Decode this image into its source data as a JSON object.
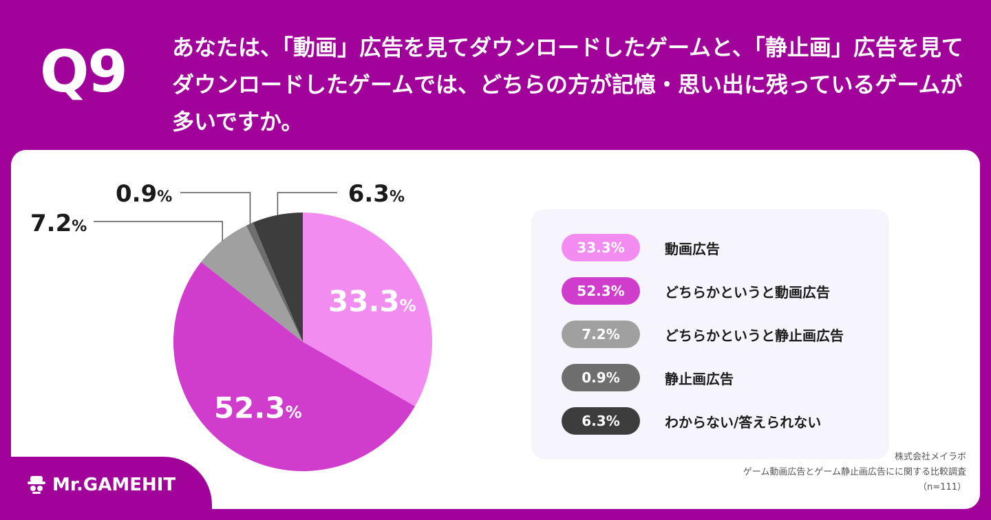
{
  "header": {
    "q_label": "Q9",
    "question": "あなたは、「動画」広告を見てダウンロードしたゲームと、「静止画」広告を見てダウンロードしたゲームでは、どちらの方が記憶・思い出に残っているゲームが多いですか。"
  },
  "chart_data": {
    "type": "pie",
    "unit": "%",
    "start": "12 o'clock, clockwise",
    "slices": [
      {
        "label": "動画広告",
        "value": 33.3,
        "display": "33.3",
        "color": "#f28cf0",
        "label_style": "inside"
      },
      {
        "label": "どちらかというと動画広告",
        "value": 52.3,
        "display": "52.3",
        "color": "#d03dcc",
        "label_style": "inside"
      },
      {
        "label": "どちらかというと静止画広告",
        "value": 7.2,
        "display": "7.2",
        "color": "#a0a0a0",
        "label_style": "callout"
      },
      {
        "label": "静止画広告",
        "value": 0.9,
        "display": "0.9",
        "color": "#6e6e6e",
        "label_style": "callout"
      },
      {
        "label": "わからない/答えられない",
        "value": 6.3,
        "display": "6.3",
        "color": "#3d3d3d",
        "label_style": "callout"
      }
    ]
  },
  "legend": [
    {
      "pill": "33.3%",
      "label": "動画広告",
      "color": "#f28cf0"
    },
    {
      "pill": "52.3%",
      "label": "どちらかというと動画広告",
      "color": "#d03dcc"
    },
    {
      "pill": "7.2%",
      "label": "どちらかというと静止画広告",
      "color": "#a0a0a0"
    },
    {
      "pill": "0.9%",
      "label": "静止画広告",
      "color": "#6e6e6e"
    },
    {
      "pill": "6.3%",
      "label": "わからない/答えられない",
      "color": "#3d3d3d"
    }
  ],
  "source": {
    "line1": "株式会社メイラボ",
    "line2": "ゲーム動画広告とゲーム静止画広告にに関する比較調査",
    "line3": "（n=111）"
  },
  "brand": {
    "name": "Mr.GAMEHIT",
    "icon": "mr-gamehit-logo-icon"
  },
  "colors": {
    "background": "#a0029a",
    "card": "#ffffff",
    "legend_bg": "#f6f5fd"
  }
}
